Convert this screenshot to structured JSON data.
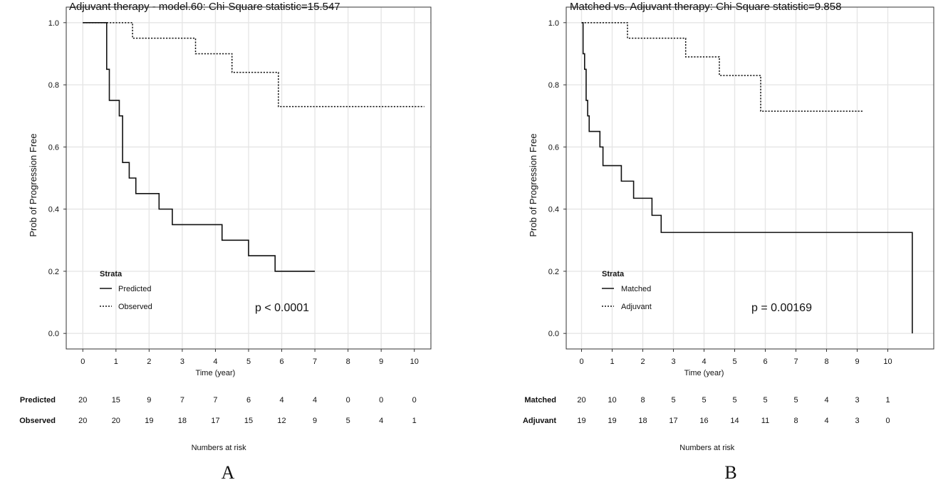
{
  "chart_data": [
    {
      "type": "line",
      "panel_label": "A",
      "title": "Adjuvant therapy - model.60: Chi-Square statistic=15.547",
      "xlabel": "Time (year)",
      "ylabel": "Prob of Progression Free",
      "xlim": [
        -0.5,
        10.5
      ],
      "ylim": [
        -0.05,
        1.05
      ],
      "xticks": [
        "0",
        "1",
        "2",
        "3",
        "4",
        "5",
        "6",
        "7",
        "8",
        "9",
        "10"
      ],
      "yticks": [
        "0.0",
        "0.2",
        "0.4",
        "0.6",
        "0.8",
        "1.0"
      ],
      "grid": true,
      "legend": {
        "title": "Strata",
        "placement": "bottom-left"
      },
      "annotation": "p < 0.0001",
      "series": [
        {
          "name": "Predicted",
          "style": "solid",
          "x": [
            0,
            0.72,
            0.8,
            1.1,
            1.2,
            1.4,
            1.6,
            2.3,
            2.7,
            4.2,
            5.0,
            5.8,
            7.0
          ],
          "y": [
            1.0,
            0.85,
            0.75,
            0.7,
            0.55,
            0.5,
            0.45,
            0.4,
            0.35,
            0.3,
            0.25,
            0.2,
            0.2
          ]
        },
        {
          "name": "Observed",
          "style": "dotted",
          "x": [
            0,
            1.5,
            3.4,
            4.5,
            5.9,
            10.3
          ],
          "y": [
            1.0,
            0.95,
            0.9,
            0.84,
            0.73,
            0.73
          ]
        }
      ],
      "risk_table": {
        "title": "Numbers at risk",
        "rows": [
          {
            "name": "Predicted",
            "values": [
              "20",
              "15",
              "9",
              "7",
              "7",
              "6",
              "4",
              "4",
              "0",
              "0",
              "0"
            ]
          },
          {
            "name": "Observed",
            "values": [
              "20",
              "20",
              "19",
              "18",
              "17",
              "15",
              "12",
              "9",
              "5",
              "4",
              "1"
            ]
          }
        ]
      }
    },
    {
      "type": "line",
      "panel_label": "B",
      "title": "Matched vs. Adjuvant therapy: Chi-Square statistic=9.858",
      "xlabel": "Time (year)",
      "ylabel": "Prob of Progression Free",
      "xlim": [
        -0.5,
        11.5
      ],
      "ylim": [
        -0.05,
        1.05
      ],
      "xticks": [
        "0",
        "1",
        "2",
        "3",
        "4",
        "5",
        "6",
        "7",
        "8",
        "9",
        "10"
      ],
      "yticks": [
        "0.0",
        "0.2",
        "0.4",
        "0.6",
        "0.8",
        "1.0"
      ],
      "grid": true,
      "legend": {
        "title": "Strata",
        "placement": "bottom-left"
      },
      "annotation": "p = 0.00169",
      "series": [
        {
          "name": "Matched",
          "style": "solid",
          "x": [
            0,
            0.05,
            0.1,
            0.15,
            0.2,
            0.25,
            0.6,
            0.7,
            1.3,
            1.7,
            2.3,
            2.6,
            10.8,
            10.8
          ],
          "y": [
            1.0,
            0.9,
            0.85,
            0.75,
            0.7,
            0.65,
            0.6,
            0.54,
            0.49,
            0.435,
            0.38,
            0.325,
            0.325,
            0.0
          ]
        },
        {
          "name": "Adjuvant",
          "style": "dotted",
          "x": [
            0,
            1.5,
            3.4,
            4.5,
            5.85,
            9.2
          ],
          "y": [
            1.0,
            0.95,
            0.89,
            0.83,
            0.715,
            0.715
          ]
        }
      ],
      "risk_table": {
        "title": "Numbers at risk",
        "rows": [
          {
            "name": "Matched",
            "values": [
              "20",
              "10",
              "8",
              "5",
              "5",
              "5",
              "5",
              "5",
              "4",
              "3",
              "1"
            ]
          },
          {
            "name": "Adjuvant",
            "values": [
              "19",
              "19",
              "18",
              "17",
              "16",
              "14",
              "11",
              "8",
              "4",
              "3",
              "0"
            ]
          }
        ]
      }
    }
  ]
}
